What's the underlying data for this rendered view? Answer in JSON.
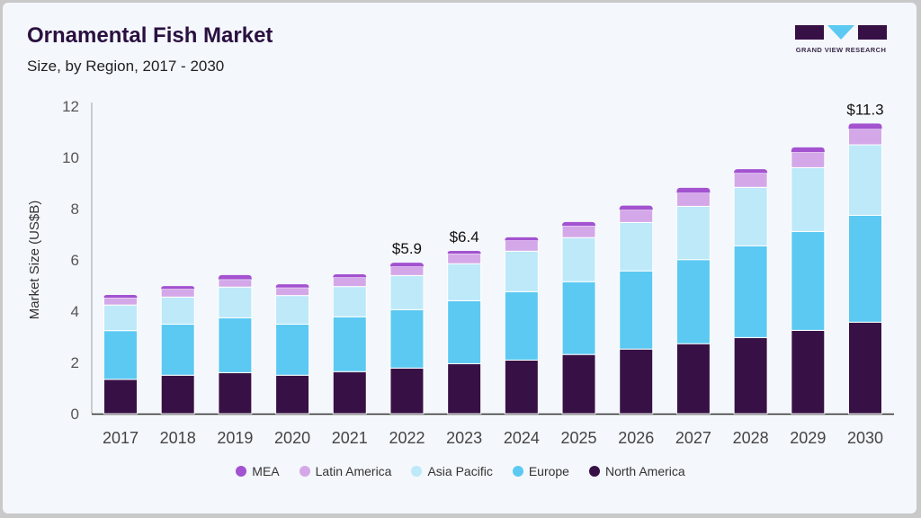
{
  "header": {
    "title": "Ornamental Fish Market",
    "subtitle": "Size, by Region, 2017 - 2030",
    "logo_text": "GRAND VIEW RESEARCH"
  },
  "chart_data": {
    "type": "bar",
    "stacked": true,
    "title": "Ornamental Fish Market",
    "subtitle": "Size, by Region, 2017 - 2030",
    "xlabel": "",
    "ylabel": "Market Size (US$B)",
    "ylim": [
      0,
      12
    ],
    "yticks": [
      "0",
      "2",
      "4",
      "6",
      "8",
      "10",
      "12"
    ],
    "grid": false,
    "legend_position": "bottom",
    "categories": [
      "2017",
      "2018",
      "2019",
      "2020",
      "2021",
      "2022",
      "2023",
      "2024",
      "2025",
      "2026",
      "2027",
      "2028",
      "2029",
      "2030"
    ],
    "series": [
      {
        "name": "North America",
        "color": "#371146",
        "values": [
          1.34,
          1.5,
          1.6,
          1.5,
          1.64,
          1.78,
          1.95,
          2.09,
          2.31,
          2.52,
          2.73,
          2.97,
          3.25,
          3.57
        ]
      },
      {
        "name": "Europe",
        "color": "#5BC9F2",
        "values": [
          1.9,
          1.99,
          2.14,
          1.99,
          2.14,
          2.28,
          2.46,
          2.67,
          2.84,
          3.05,
          3.28,
          3.58,
          3.86,
          4.17
        ]
      },
      {
        "name": "Asia Pacific",
        "color": "#BDE9F9",
        "values": [
          1.0,
          1.06,
          1.2,
          1.12,
          1.18,
          1.33,
          1.44,
          1.58,
          1.72,
          1.89,
          2.08,
          2.28,
          2.49,
          2.75
        ]
      },
      {
        "name": "Latin America",
        "color": "#D4A8E8",
        "values": [
          0.28,
          0.32,
          0.3,
          0.31,
          0.36,
          0.35,
          0.39,
          0.42,
          0.46,
          0.49,
          0.53,
          0.56,
          0.6,
          0.62
        ]
      },
      {
        "name": "MEA",
        "color": "#A352D0",
        "values": [
          0.11,
          0.11,
          0.17,
          0.13,
          0.12,
          0.15,
          0.11,
          0.12,
          0.15,
          0.17,
          0.19,
          0.15,
          0.19,
          0.21
        ]
      }
    ],
    "annotations": [
      {
        "category": "2022",
        "text": "$5.9"
      },
      {
        "category": "2023",
        "text": "$6.4"
      },
      {
        "category": "2030",
        "text": "$11.3"
      }
    ],
    "legend_order": [
      "MEA",
      "Latin America",
      "Asia Pacific",
      "Europe",
      "North America"
    ]
  }
}
